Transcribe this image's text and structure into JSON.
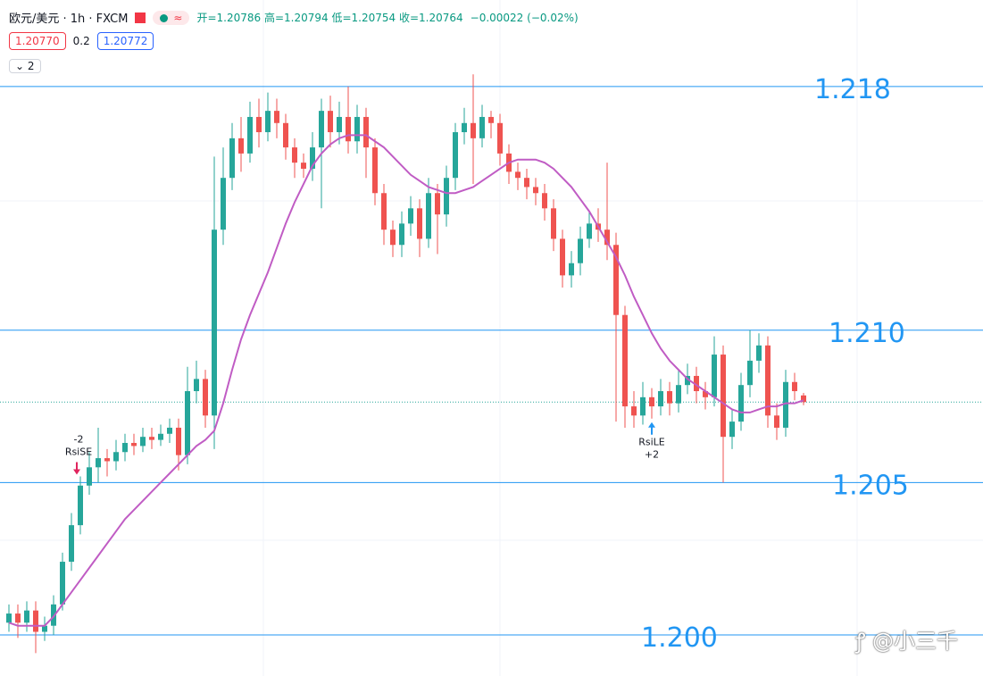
{
  "header": {
    "symbol": "欧元/美元 · 1h · FXCM",
    "badge": "≈",
    "ohlc": "开=1.20786 高=1.20794 低=1.20754 收=1.20764",
    "change": "−0.00022 (−0.02%)"
  },
  "controls": {
    "sell": "1.20770",
    "spread": "0.2",
    "buy": "1.20772",
    "indicators": "2"
  },
  "watermark": "@小三千",
  "chart_data": {
    "type": "candlestick",
    "up_color": "#26a69a",
    "down_color": "#ef5350",
    "ylim": [
      1.19865,
      1.21908
    ],
    "open": [
      1.2004,
      1.2007,
      1.2004,
      1.2008,
      1.2001,
      1.2003,
      1.201,
      1.2024,
      1.2036,
      1.2049,
      1.2055,
      1.2058,
      1.2057,
      1.206,
      1.2063,
      1.2062,
      1.2065,
      1.2064,
      1.2066,
      1.2068,
      1.2059,
      1.208,
      1.2084,
      1.2072,
      1.2133,
      1.215,
      1.2163,
      1.2158,
      1.217,
      1.2165,
      1.2172,
      1.2168,
      1.216,
      1.2155,
      1.2153,
      1.216,
      1.2172,
      1.2165,
      1.217,
      1.2162,
      1.217,
      1.216,
      1.2145,
      1.2133,
      1.2128,
      1.2135,
      1.214,
      1.213,
      1.2145,
      1.2138,
      1.215,
      1.2165,
      1.2168,
      1.2163,
      1.217,
      1.2168,
      1.2158,
      1.2152,
      1.215,
      1.2147,
      1.2145,
      1.214,
      1.213,
      1.2118,
      1.2122,
      1.213,
      1.2135,
      1.2133,
      1.2128,
      1.2105,
      1.2075,
      1.2072,
      1.2078,
      1.2075,
      1.208,
      1.2076,
      1.2082,
      1.2085,
      1.208,
      1.2078,
      1.2092,
      1.2065,
      1.207,
      1.2082,
      1.209,
      1.2095,
      1.2072,
      1.2068,
      1.2083,
      1.20786
    ],
    "high": [
      1.201,
      1.201,
      1.2011,
      1.2011,
      1.2006,
      1.2013,
      1.2027,
      1.204,
      1.2052,
      1.206,
      1.2068,
      1.2061,
      1.2064,
      1.2066,
      1.2066,
      1.2068,
      1.2068,
      1.2069,
      1.2071,
      1.2071,
      1.2088,
      1.209,
      1.2087,
      1.2157,
      1.216,
      1.2168,
      1.217,
      1.2175,
      1.2176,
      1.2178,
      1.2176,
      1.2171,
      1.2163,
      1.2158,
      1.2165,
      1.2176,
      1.2177,
      1.2175,
      1.218,
      1.2174,
      1.2173,
      1.2163,
      1.2148,
      1.2136,
      1.2139,
      1.2144,
      1.2143,
      1.215,
      1.2148,
      1.2154,
      1.2168,
      1.2173,
      1.2184,
      1.2174,
      1.2172,
      1.2171,
      1.2161,
      1.2155,
      1.2153,
      1.215,
      1.2148,
      1.2143,
      1.2133,
      1.2126,
      1.2134,
      1.2139,
      1.214,
      1.2155,
      1.2132,
      1.2108,
      1.208,
      1.2083,
      1.2081,
      1.2084,
      1.2083,
      1.2087,
      1.2089,
      1.2088,
      1.2083,
      1.2098,
      1.2095,
      1.2074,
      1.2086,
      1.21,
      1.2099,
      1.2098,
      1.2076,
      1.2087,
      1.2086,
      1.20794
    ],
    "low": [
      1.2001,
      1.1999,
      1.2001,
      1.1994,
      1.1998,
      1.2,
      1.2008,
      1.2021,
      1.2033,
      1.2046,
      1.205,
      1.2052,
      1.2054,
      1.2057,
      1.2059,
      1.206,
      1.2061,
      1.2062,
      1.2063,
      1.2054,
      1.2056,
      1.2076,
      1.2068,
      1.2061,
      1.2128,
      1.2146,
      1.2152,
      1.2155,
      1.216,
      1.2162,
      1.2163,
      1.2156,
      1.215,
      1.215,
      1.2149,
      1.214,
      1.216,
      1.2161,
      1.2158,
      1.2158,
      1.215,
      1.2141,
      1.2128,
      1.2124,
      1.2124,
      1.2131,
      1.2124,
      1.2127,
      1.2125,
      1.2134,
      1.2146,
      1.2161,
      1.2148,
      1.216,
      1.2163,
      1.2154,
      1.2148,
      1.2146,
      1.2143,
      1.2141,
      1.2136,
      1.2126,
      1.2114,
      1.2114,
      1.2118,
      1.2127,
      1.2129,
      1.2123,
      1.207,
      1.2068,
      1.2068,
      1.2069,
      1.2071,
      1.2072,
      1.2072,
      1.2073,
      1.2079,
      1.2076,
      1.2074,
      1.2075,
      1.205,
      1.2061,
      1.2067,
      1.2078,
      1.2086,
      1.2068,
      1.2064,
      1.2065,
      1.2077,
      1.20754
    ],
    "close": [
      1.2007,
      1.2004,
      1.2008,
      1.2001,
      1.2003,
      1.201,
      1.2024,
      1.2036,
      1.2049,
      1.2055,
      1.2058,
      1.2057,
      1.206,
      1.2063,
      1.2062,
      1.2065,
      1.2064,
      1.2066,
      1.2068,
      1.2059,
      1.208,
      1.2084,
      1.2072,
      1.2133,
      1.215,
      1.2163,
      1.2158,
      1.217,
      1.2165,
      1.2172,
      1.2168,
      1.216,
      1.2155,
      1.2153,
      1.216,
      1.2172,
      1.2165,
      1.217,
      1.2162,
      1.217,
      1.216,
      1.2145,
      1.2133,
      1.2128,
      1.2135,
      1.214,
      1.213,
      1.2145,
      1.2138,
      1.215,
      1.2165,
      1.2168,
      1.2163,
      1.217,
      1.2168,
      1.2158,
      1.2152,
      1.215,
      1.2147,
      1.2145,
      1.214,
      1.213,
      1.2118,
      1.2122,
      1.213,
      1.2135,
      1.2133,
      1.2128,
      1.2105,
      1.2075,
      1.2072,
      1.2078,
      1.2075,
      1.208,
      1.2076,
      1.2082,
      1.2085,
      1.208,
      1.2078,
      1.2092,
      1.2065,
      1.207,
      1.2082,
      1.209,
      1.2095,
      1.2072,
      1.2068,
      1.2083,
      1.208,
      1.20764
    ],
    "ma": {
      "color": "#c05cc4",
      "values": [
        1.2004,
        1.2003,
        1.2003,
        1.2003,
        1.2003,
        1.2006,
        1.201,
        1.2014,
        1.2018,
        1.2022,
        1.2026,
        1.203,
        1.2034,
        1.2038,
        1.2041,
        1.2044,
        1.2047,
        1.205,
        1.2053,
        1.2056,
        1.2059,
        1.2062,
        1.2064,
        1.2067,
        1.2076,
        1.2087,
        1.2097,
        1.2105,
        1.2112,
        1.2119,
        1.2127,
        1.2135,
        1.2142,
        1.2148,
        1.2154,
        1.2158,
        1.2161,
        1.2163,
        1.2164,
        1.2164,
        1.2164,
        1.2162,
        1.216,
        1.2157,
        1.2154,
        1.2151,
        1.2149,
        1.2147,
        1.2146,
        1.2145,
        1.2145,
        1.2146,
        1.2147,
        1.2149,
        1.2151,
        1.2153,
        1.2155,
        1.2156,
        1.2156,
        1.2156,
        1.2155,
        1.2153,
        1.215,
        1.2147,
        1.2143,
        1.2139,
        1.2134,
        1.2129,
        1.2124,
        1.2118,
        1.2111,
        1.2105,
        1.2099,
        1.2094,
        1.209,
        1.2087,
        1.2084,
        1.2082,
        1.208,
        1.2078,
        1.2076,
        1.2074,
        1.2073,
        1.2073,
        1.2074,
        1.2075,
        1.2075,
        1.2076,
        1.2076,
        1.2077
      ]
    },
    "levels_color": "#2196f3",
    "levels": [
      {
        "value": 1.218,
        "label": "1.218"
      },
      {
        "value": 1.21,
        "label": "1.210"
      },
      {
        "value": 1.205,
        "label": "1.205"
      },
      {
        "value": 1.2,
        "label": "1.200"
      }
    ],
    "signals": [
      {
        "index": 8,
        "side": "sell",
        "name": "RsiSE",
        "qty": "-2"
      },
      {
        "index": 72,
        "side": "buy",
        "name": "RsiLE",
        "qty": "+2"
      }
    ]
  }
}
